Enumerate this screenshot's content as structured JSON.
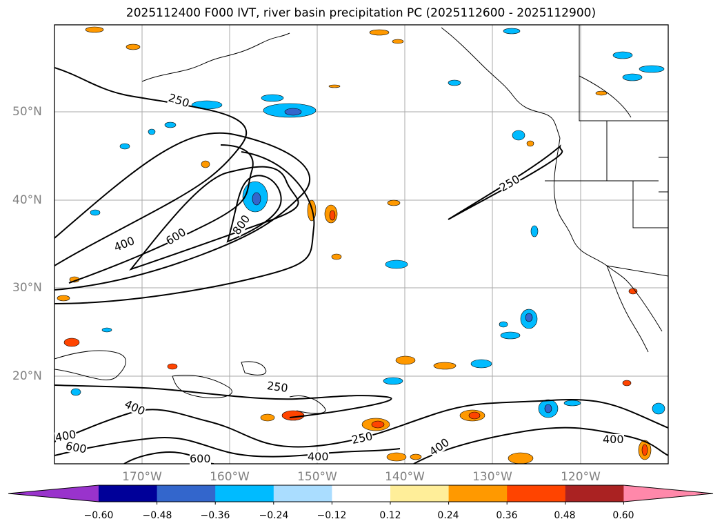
{
  "title": "2025112400 F000 IVT, river basin precipitation PC (2025112600 - 2025112900)",
  "latitude_labels": [
    "50°N",
    "40°N",
    "30°N",
    "20°N"
  ],
  "longitude_labels": [
    "170°W",
    "160°W",
    "150°W",
    "140°W",
    "130°W",
    "120°W"
  ],
  "contour_labels": [
    "250",
    "400",
    "600",
    "800",
    "250",
    "250",
    "400",
    "400",
    "600",
    "600",
    "400",
    "250",
    "400",
    "400"
  ],
  "colorbar": {
    "colors": [
      "#9933cc",
      "#000099",
      "#3366cc",
      "#00bbff",
      "#aaddff",
      "#ffffff",
      "#ffee99",
      "#ff9900",
      "#ff4400",
      "#aa2222",
      "#ff88aa"
    ],
    "tick_labels": [
      "−0.60",
      "−0.48",
      "−0.36",
      "−0.24",
      "−0.12",
      "0.12",
      "0.24",
      "0.36",
      "0.48",
      "0.60"
    ]
  },
  "colors": {
    "line": "#000000",
    "grid": "#aaaaaa",
    "label": "#808080"
  }
}
